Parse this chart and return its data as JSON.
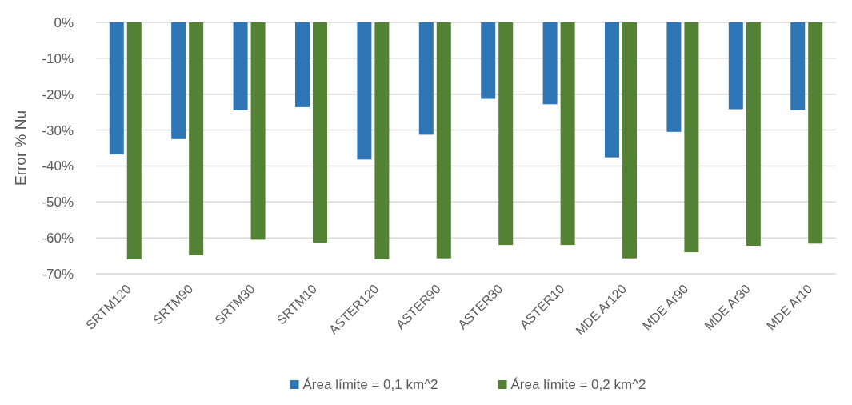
{
  "chart_data": {
    "type": "bar",
    "ylabel": "Error % Nu",
    "categories": [
      "SRTM120",
      "SRTM90",
      "SRTM30",
      "SRTM10",
      "ASTER120",
      "ASTER90",
      "ASTER30",
      "ASTER10",
      "MDE Ar120",
      "MDE Ar90",
      "MDE Ar30",
      "MDE Ar10"
    ],
    "series": [
      {
        "name": "Área límite = 0,1 km^2",
        "color": "#2e75b6",
        "values": [
          -36.8,
          -32.5,
          -24.5,
          -23.6,
          -38.2,
          -31.3,
          -21.3,
          -22.8,
          -37.6,
          -30.5,
          -24.2,
          -24.5
        ]
      },
      {
        "name": "Área límite = 0,2 km^2",
        "color": "#548235",
        "values": [
          -66,
          -64.8,
          -60.5,
          -61.4,
          -66,
          -65.7,
          -62,
          -62,
          -65.7,
          -64,
          -62.2,
          -61.6
        ]
      }
    ],
    "ylim": [
      -70,
      0
    ],
    "yticks": [
      {
        "value": 0,
        "label": "0%"
      },
      {
        "value": -10,
        "label": "-10%"
      },
      {
        "value": -20,
        "label": "-20%"
      },
      {
        "value": -30,
        "label": "-30%"
      },
      {
        "value": -40,
        "label": "-40%"
      },
      {
        "value": -50,
        "label": "-50%"
      },
      {
        "value": -60,
        "label": "-60%"
      },
      {
        "value": -70,
        "label": "-70%"
      }
    ],
    "grid": "y",
    "legend": "bottom"
  }
}
